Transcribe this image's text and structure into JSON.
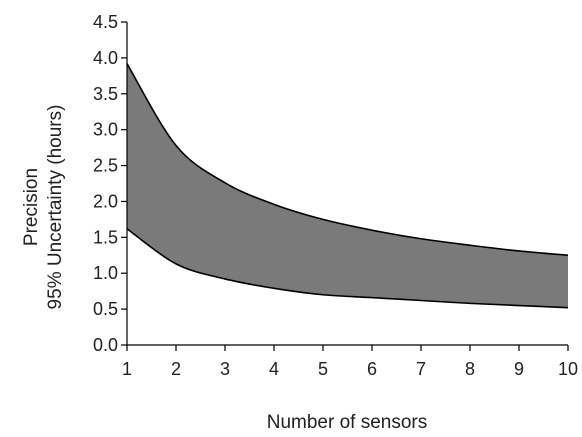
{
  "chart_data": {
    "type": "area",
    "title": "",
    "xlabel": "Number of sensors",
    "ylabel_lines": [
      "Precision",
      "95% Uncertainty (hours)"
    ],
    "xlim": [
      1,
      10
    ],
    "ylim": [
      0,
      4.5
    ],
    "x_ticks": [
      1,
      2,
      3,
      4,
      5,
      6,
      7,
      8,
      9,
      10
    ],
    "y_ticks": [
      "0.0",
      "0.5",
      "1.0",
      "1.5",
      "2.0",
      "2.5",
      "3.0",
      "3.5",
      "4.0",
      "4.5"
    ],
    "grid": false,
    "legend": "none",
    "x": [
      1,
      2,
      3,
      4,
      5,
      6,
      7,
      8,
      9,
      10
    ],
    "series": [
      {
        "values": [
          1.62,
          1.13,
          0.92,
          0.79,
          0.7,
          0.66,
          0.62,
          0.58,
          0.55,
          0.52
        ]
      },
      {
        "values": [
          3.92,
          2.78,
          2.26,
          1.96,
          1.75,
          1.6,
          1.48,
          1.39,
          1.31,
          1.25
        ]
      }
    ],
    "colors": {
      "band_fill": "#7a7a7a",
      "line": "#000000",
      "axis": "#000000",
      "text": "#222222"
    }
  }
}
